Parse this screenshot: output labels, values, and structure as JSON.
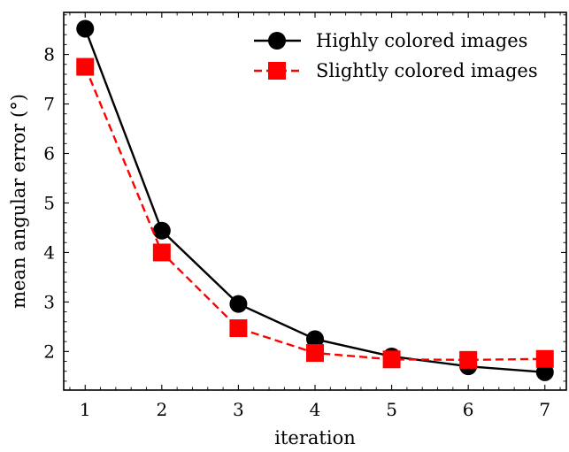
{
  "chart_data": {
    "type": "line",
    "title": "",
    "xlabel": "iteration",
    "ylabel": "mean angular error (°)",
    "x": [
      1,
      2,
      3,
      4,
      5,
      6,
      7
    ],
    "xlim": [
      0.72,
      7.28
    ],
    "ylim": [
      1.22,
      8.85
    ],
    "xticks": [
      1,
      2,
      3,
      4,
      5,
      6,
      7
    ],
    "yticks": [
      2,
      3,
      4,
      5,
      6,
      7,
      8
    ],
    "grid": false,
    "legend_position": "top-right",
    "series": [
      {
        "name": "Highly colored images",
        "values": [
          8.52,
          4.44,
          2.96,
          2.25,
          1.9,
          1.7,
          1.58
        ],
        "color": "#000000",
        "line_style": "solid",
        "marker": "circle"
      },
      {
        "name": "Slightly colored images",
        "values": [
          7.75,
          4.0,
          2.47,
          1.97,
          1.84,
          1.83,
          1.85
        ],
        "color": "#ff0000",
        "line_style": "dashed",
        "marker": "square"
      }
    ]
  }
}
